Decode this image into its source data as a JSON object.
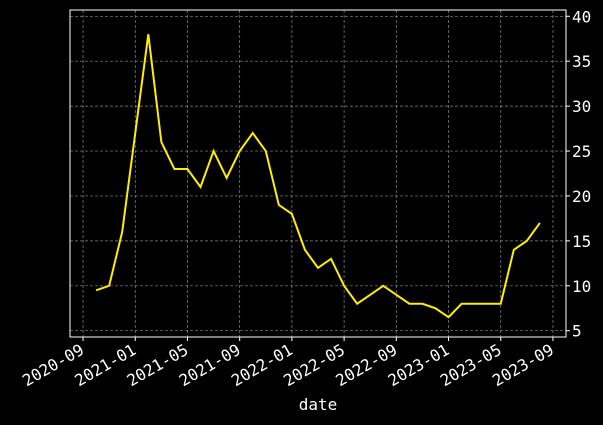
{
  "chart_data": {
    "type": "line",
    "x_label": "date",
    "x": [
      "2020-10",
      "2020-11",
      "2020-12",
      "2021-01",
      "2021-02",
      "2021-03",
      "2021-04",
      "2021-05",
      "2021-06",
      "2021-07",
      "2021-08",
      "2021-09",
      "2021-10",
      "2021-11",
      "2021-12",
      "2022-01",
      "2022-02",
      "2022-03",
      "2022-04",
      "2022-05",
      "2022-06",
      "2022-07",
      "2022-08",
      "2022-09",
      "2022-10",
      "2022-11",
      "2022-12",
      "2023-01",
      "2023-02",
      "2023-03",
      "2023-04",
      "2023-05",
      "2023-06",
      "2023-07",
      "2023-08"
    ],
    "series": [
      {
        "color": "#ffee00",
        "values": [
          9.5,
          10,
          16,
          27,
          38,
          26,
          23,
          23,
          21,
          25,
          22,
          25,
          27,
          25,
          19,
          18,
          14,
          12,
          13,
          10,
          8,
          9,
          10,
          9,
          8,
          8,
          7.5,
          6.5,
          8,
          8,
          8,
          8,
          14,
          15,
          17
        ]
      }
    ],
    "xlim": [
      "2020-08",
      "2023-10"
    ],
    "xticks": [
      "2020-09",
      "2021-01",
      "2021-05",
      "2021-09",
      "2022-01",
      "2022-05",
      "2022-09",
      "2023-01",
      "2023-05",
      "2023-09"
    ],
    "ylim": [
      4.3,
      40.7
    ],
    "yticks": [
      5,
      10,
      15,
      20,
      25,
      30,
      35,
      40
    ],
    "grid": true
  }
}
